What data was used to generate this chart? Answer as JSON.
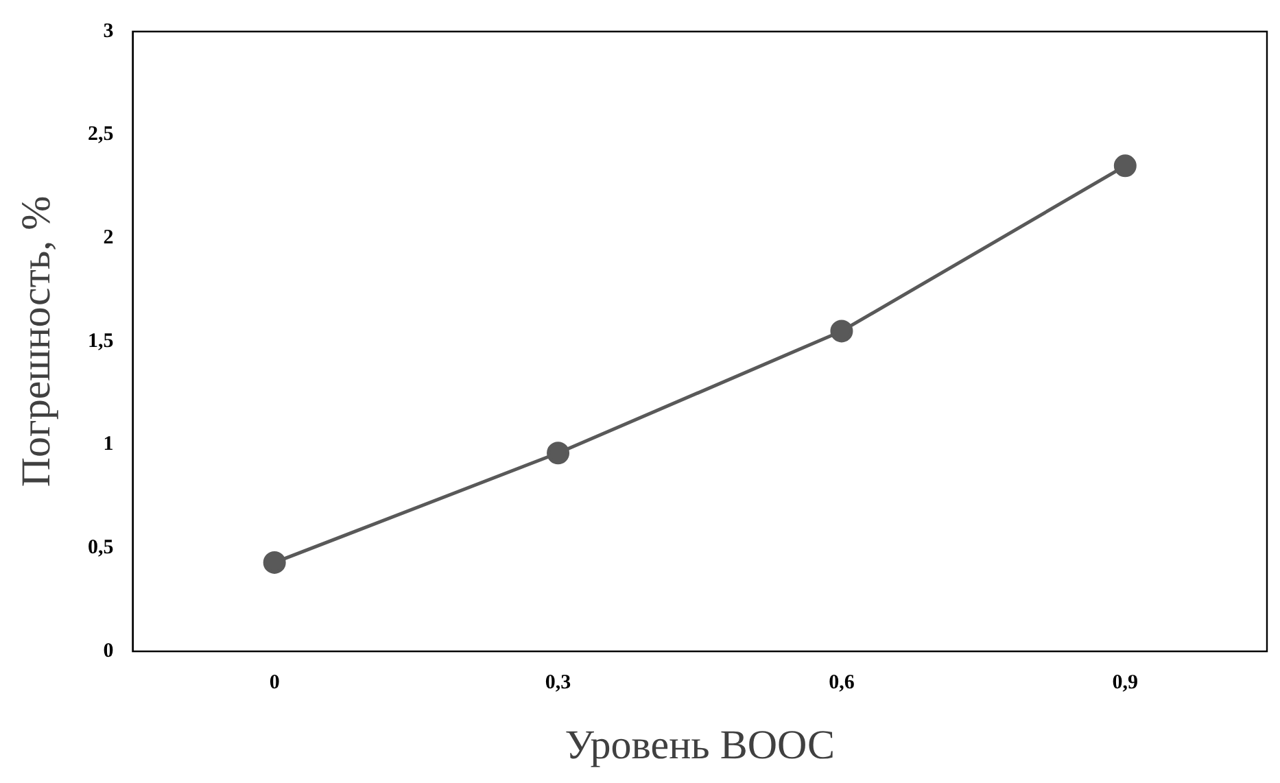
{
  "chart_data": {
    "type": "line",
    "xlabel": "Уровень ВООС",
    "ylabel": "Погрешность, %",
    "categories": [
      "0",
      "0,3",
      "0,6",
      "0,9"
    ],
    "series": [
      {
        "color": "#595959",
        "values": [
          0.43,
          0.96,
          1.55,
          2.35
        ]
      }
    ],
    "ylim": [
      0,
      3
    ],
    "yticks": [
      0,
      {
        "value": 0.5,
        "label": "0,5"
      },
      1,
      {
        "value": 1.5,
        "label": "1,5"
      },
      2,
      {
        "value": 2.5,
        "label": "2,5"
      },
      3
    ],
    "grid": false,
    "legend": false,
    "marker": "circle",
    "line_style": "solid"
  }
}
